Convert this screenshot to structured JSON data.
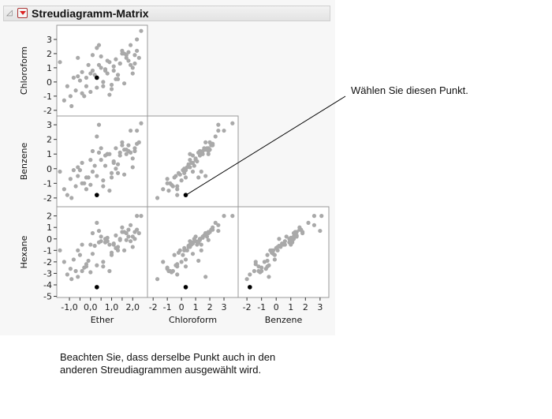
{
  "window": {
    "title": "Streudiagramm-Matrix",
    "collapse_icon": "disclosure-triangle-icon",
    "menu_icon": "red-triangle-menu-icon"
  },
  "annotations": {
    "select_point": "Wählen Sie diesen Punkt.",
    "note": "Beachten Sie, dass derselbe Punkt auch in den anderen Streudiagrammen ausgewählt wird."
  },
  "colors": {
    "point": "#a9a9a9",
    "selected_point": "#000000",
    "frame": "#999999",
    "background": "#ffffff"
  },
  "chart_data": {
    "type": "scatter",
    "variables": [
      "Ether",
      "Chloroform",
      "Benzene",
      "Hexane"
    ],
    "axes": {
      "x": [
        {
          "var": "Ether",
          "ticks": [
            -1.0,
            -0.5,
            0.0,
            0.5,
            1.0,
            1.5,
            2.0
          ],
          "tick_labels": [
            "-1,0",
            "",
            "0,0",
            "",
            "1,0",
            "",
            "2,0"
          ],
          "range": [
            -1.6,
            2.7
          ]
        },
        {
          "var": "Chloroform",
          "ticks": [
            -2,
            -1,
            0,
            1,
            2,
            3
          ],
          "tick_labels": [
            "-2",
            "-1",
            "0",
            "1",
            "2",
            "3"
          ],
          "range": [
            -2.4,
            4.0
          ]
        },
        {
          "var": "Benzene",
          "ticks": [
            -2,
            -1,
            0,
            1,
            2,
            3
          ],
          "tick_labels": [
            "-2",
            "-1",
            "0",
            "1",
            "2",
            "3"
          ],
          "range": [
            -2.6,
            3.6
          ]
        }
      ],
      "y": [
        {
          "var": "Chloroform",
          "ticks": [
            -2,
            -1,
            0,
            1,
            2,
            3
          ],
          "tick_labels": [
            "-2",
            "-1",
            "0",
            "1",
            "2",
            "3"
          ],
          "range": [
            -2.4,
            4.0
          ]
        },
        {
          "var": "Benzene",
          "ticks": [
            -2,
            -1,
            0,
            1,
            2,
            3
          ],
          "tick_labels": [
            "-2",
            "-1",
            "0",
            "1",
            "2",
            "3"
          ],
          "range": [
            -2.6,
            3.6
          ]
        },
        {
          "var": "Hexane",
          "ticks": [
            -5,
            -4,
            -3,
            -2,
            -1,
            0,
            1,
            2
          ],
          "tick_labels": [
            "-5",
            "-4",
            "-3",
            "-2",
            "-1",
            "0",
            "1",
            "2"
          ],
          "range": [
            -5.1,
            2.8
          ]
        }
      ]
    },
    "cells": [
      {
        "row": 0,
        "col": 0,
        "x": "Ether",
        "y": "Chloroform"
      },
      {
        "row": 1,
        "col": 0,
        "x": "Ether",
        "y": "Benzene"
      },
      {
        "row": 1,
        "col": 1,
        "x": "Chloroform",
        "y": "Benzene"
      },
      {
        "row": 2,
        "col": 0,
        "x": "Ether",
        "y": "Hexane"
      },
      {
        "row": 2,
        "col": 1,
        "x": "Chloroform",
        "y": "Hexane"
      },
      {
        "row": 2,
        "col": 2,
        "x": "Benzene",
        "y": "Hexane"
      }
    ],
    "points": {
      "Ether": [
        -1.45,
        -1.25,
        -1.1,
        -0.95,
        -0.8,
        -0.7,
        -0.6,
        -0.5,
        -0.4,
        -0.3,
        -0.2,
        -0.1,
        0.0,
        0.1,
        0.2,
        0.3,
        0.4,
        0.5,
        0.6,
        0.7,
        0.8,
        0.9,
        1.0,
        1.1,
        1.2,
        1.3,
        1.4,
        1.5,
        1.6,
        1.7,
        1.8,
        1.9,
        2.0,
        2.1,
        2.2,
        2.3,
        -0.9,
        -0.4,
        0.1,
        0.6,
        1.1,
        1.6,
        2.0,
        -0.6,
        0.3,
        0.8,
        1.3,
        1.8,
        2.2,
        -0.2,
        0.5,
        1.0,
        1.5,
        1.9,
        0.0,
        0.7,
        1.2,
        1.7,
        2.1,
        0.4,
        0.9,
        1.4,
        2.4
      ],
      "Chloroform": [
        1.4,
        -1.3,
        -0.3,
        -1.0,
        0.3,
        -0.6,
        1.7,
        0.1,
        0.7,
        -1.0,
        0.3,
        1.2,
        -0.7,
        0.8,
        0.5,
        -0.4,
        2.6,
        1.0,
        -0.3,
        0.9,
        0.6,
        1.4,
        -0.2,
        1.1,
        1.6,
        0.5,
        1.3,
        2.0,
        -0.1,
        1.9,
        1.5,
        2.6,
        0.6,
        1.3,
        2.2,
        1.7,
        -1.7,
        -0.8,
        1.9,
        0.0,
        0.8,
        2.0,
        1.0,
        0.4,
        2.4,
        1.5,
        0.2,
        2.1,
        3.0,
        -0.3,
        1.8,
        -0.5,
        2.2,
        1.2,
        0.6,
        0.8,
        0.2,
        1.7,
        1.9,
        1.2,
        -0.9,
        1.3,
        3.6
      ],
      "Benzene": [
        -0.2,
        -1.4,
        -1.8,
        -0.7,
        -0.1,
        -1.2,
        -0.5,
        -0.1,
        0.4,
        -1.0,
        -0.6,
        -0.6,
        -1.1,
        -0.2,
        0.2,
        -0.5,
        3.0,
        0.6,
        -1.2,
        0.2,
        1.0,
        1.0,
        -0.3,
        0.5,
        1.4,
        0.3,
        1.1,
        1.8,
        -0.4,
        1.0,
        1.2,
        2.6,
        0.1,
        1.2,
        1.7,
        1.8,
        -2.0,
        -1.0,
        1.2,
        -0.8,
        0.4,
        1.3,
        0.7,
        0.1,
        2.2,
        1.0,
        -0.3,
        1.6,
        2.6,
        -1.4,
        1.4,
        -0.6,
        1.6,
        1.1,
        0.6,
        0.9,
        0.0,
        1.3,
        1.4,
        1.1,
        -1.5,
        0.9,
        3.1
      ],
      "Hexane": [
        -1.0,
        -2.0,
        -3.1,
        -2.6,
        -1.8,
        -2.8,
        -3.3,
        -1.4,
        -0.5,
        -2.5,
        -2.4,
        -1.9,
        -2.9,
        -1.3,
        -0.6,
        -2.3,
        0.7,
        -0.2,
        -2.4,
        0.0,
        -0.2,
        -0.5,
        -1.2,
        -0.5,
        0.3,
        -0.7,
        -0.1,
        0.6,
        -1.0,
        -0.1,
        0.2,
        1.2,
        -0.7,
        0.0,
        0.8,
        0.5,
        -3.5,
        -2.8,
        0.5,
        -2.0,
        -0.4,
        0.6,
        0.2,
        -1.0,
        1.4,
        0.1,
        -1.0,
        0.8,
        2.0,
        -2.2,
        0.2,
        -1.4,
        1.0,
        -0.2,
        -0.5,
        -0.3,
        -0.8,
        0.5,
        0.6,
        -0.3,
        -2.8,
        0.0,
        2.0
      ]
    },
    "selected_point": {
      "Ether": 0.3,
      "Chloroform": 0.3,
      "Benzene": -1.8,
      "Hexane": -4.2
    }
  }
}
